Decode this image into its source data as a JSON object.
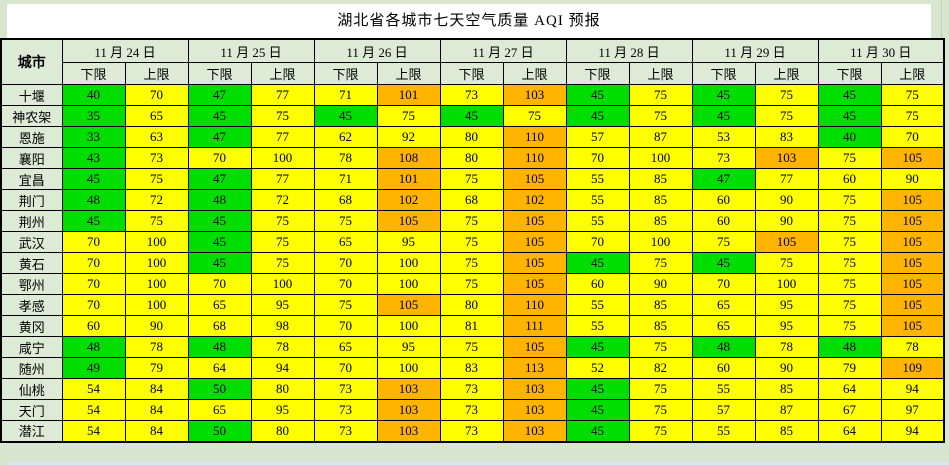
{
  "title": "湖北省各城市七天空气质量 AQI 预报",
  "chart_data": {
    "type": "table",
    "title": "湖北省各城市七天空气质量 AQI 预报",
    "row_header": "城市",
    "day_columns": [
      "11 月 24 日",
      "11 月 25 日",
      "11 月 26 日",
      "11 月 27 日",
      "11 月 28 日",
      "11 月 29 日",
      "11 月 30 日"
    ],
    "sub_columns": [
      "下限",
      "上限"
    ],
    "color_rule": {
      "good_max": 50,
      "good_color": "#00DE00",
      "moderate_max": 100,
      "moderate_color": "#FFFF00",
      "unhealthy_color": "#FFB400"
    },
    "header_bg": "#DCEAD6",
    "rows": [
      {
        "city": "十堰",
        "values": [
          40,
          70,
          47,
          77,
          71,
          101,
          73,
          103,
          45,
          75,
          45,
          75,
          45,
          75
        ]
      },
      {
        "city": "神农架",
        "values": [
          35,
          65,
          45,
          75,
          45,
          75,
          45,
          75,
          45,
          75,
          45,
          75,
          45,
          75
        ]
      },
      {
        "city": "恩施",
        "values": [
          33,
          63,
          47,
          77,
          62,
          92,
          80,
          110,
          57,
          87,
          53,
          83,
          40,
          70
        ]
      },
      {
        "city": "襄阳",
        "values": [
          43,
          73,
          70,
          100,
          78,
          108,
          80,
          110,
          70,
          100,
          73,
          103,
          75,
          105
        ]
      },
      {
        "city": "宜昌",
        "values": [
          45,
          75,
          47,
          77,
          71,
          101,
          75,
          105,
          55,
          85,
          47,
          77,
          60,
          90
        ]
      },
      {
        "city": "荆门",
        "values": [
          48,
          72,
          48,
          72,
          68,
          102,
          68,
          102,
          55,
          85,
          60,
          90,
          75,
          105
        ]
      },
      {
        "city": "荆州",
        "values": [
          45,
          75,
          45,
          75,
          75,
          105,
          75,
          105,
          55,
          85,
          60,
          90,
          75,
          105
        ]
      },
      {
        "city": "武汉",
        "values": [
          70,
          100,
          45,
          75,
          65,
          95,
          75,
          105,
          70,
          100,
          75,
          105,
          75,
          105
        ]
      },
      {
        "city": "黄石",
        "values": [
          70,
          100,
          45,
          75,
          70,
          100,
          75,
          105,
          45,
          75,
          45,
          75,
          75,
          105
        ]
      },
      {
        "city": "鄂州",
        "values": [
          70,
          100,
          70,
          100,
          70,
          100,
          75,
          105,
          60,
          90,
          70,
          100,
          75,
          105
        ]
      },
      {
        "city": "孝感",
        "values": [
          70,
          100,
          65,
          95,
          75,
          105,
          80,
          110,
          55,
          85,
          65,
          95,
          75,
          105
        ]
      },
      {
        "city": "黄冈",
        "values": [
          60,
          90,
          68,
          98,
          70,
          100,
          81,
          111,
          55,
          85,
          65,
          95,
          75,
          105
        ]
      },
      {
        "city": "咸宁",
        "values": [
          48,
          78,
          48,
          78,
          65,
          95,
          75,
          105,
          45,
          75,
          48,
          78,
          48,
          78
        ]
      },
      {
        "city": "随州",
        "values": [
          49,
          79,
          64,
          94,
          70,
          100,
          83,
          113,
          52,
          82,
          60,
          90,
          79,
          109
        ]
      },
      {
        "city": "仙桃",
        "values": [
          54,
          84,
          50,
          80,
          73,
          103,
          73,
          103,
          45,
          75,
          55,
          85,
          64,
          94
        ]
      },
      {
        "city": "天门",
        "values": [
          54,
          84,
          65,
          95,
          73,
          103,
          73,
          103,
          45,
          75,
          57,
          87,
          67,
          97
        ]
      },
      {
        "city": "潜江",
        "values": [
          54,
          84,
          50,
          80,
          73,
          103,
          73,
          103,
          45,
          75,
          55,
          85,
          64,
          94
        ]
      }
    ]
  }
}
